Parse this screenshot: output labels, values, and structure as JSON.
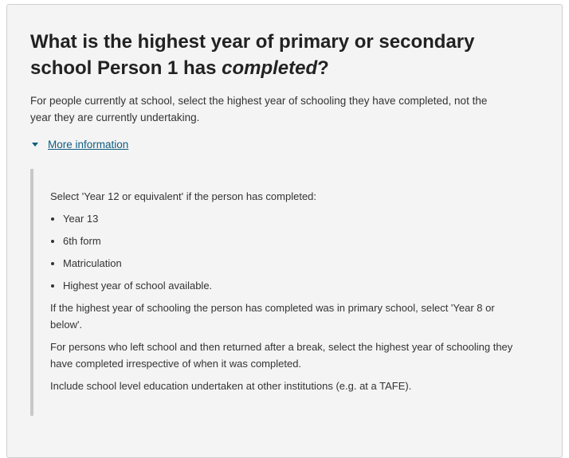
{
  "question": {
    "title_prefix": "What is the highest year of primary or secondary school Person 1 has ",
    "title_emphasis": "completed",
    "title_suffix": "?",
    "description": "For people currently at school, select the highest year of schooling they have completed, not the year they are currently undertaking."
  },
  "more_information": {
    "label": "More information",
    "icon": "caret-down-icon",
    "expanded": true,
    "intro": "Select 'Year 12 or equivalent' if the person has completed:",
    "items": [
      "Year 13",
      "6th form",
      "Matriculation",
      "Highest year of school available."
    ],
    "paragraphs": [
      "If the highest year of schooling the person has completed was in primary school, select 'Year 8 or below'.",
      "For persons who left school and then returned after a break, select the highest year of schooling they have completed irrespective of when it was completed.",
      "Include school level education undertaken at other institutions (e.g. at a TAFE)."
    ]
  },
  "colors": {
    "panel_bg": "#f4f4f4",
    "link": "#0f5d82",
    "text": "#222222"
  }
}
